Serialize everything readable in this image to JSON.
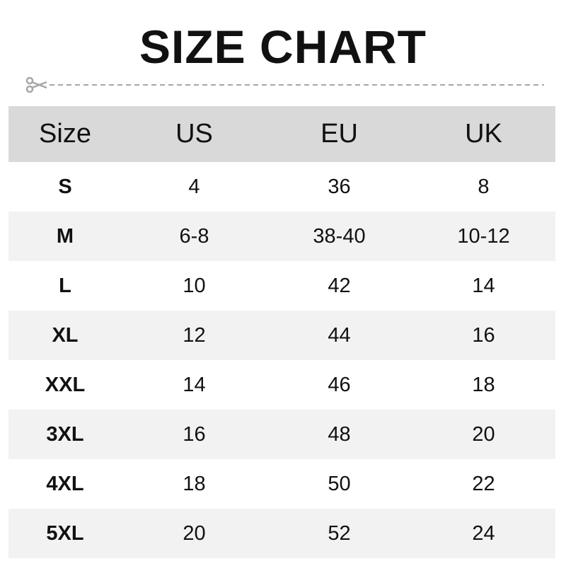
{
  "title": "SIZE CHART",
  "icons": {
    "cut_line": "scissors-icon"
  },
  "colors": {
    "header_bg": "#d9d9d9",
    "alt_row_bg": "#f2f2f2",
    "cut_line": "#a6a6a6"
  },
  "table": {
    "headers": [
      "Size",
      "US",
      "EU",
      "UK"
    ],
    "rows": [
      [
        "S",
        "4",
        "36",
        "8"
      ],
      [
        "M",
        "6-8",
        "38-40",
        "10-12"
      ],
      [
        "L",
        "10",
        "42",
        "14"
      ],
      [
        "XL",
        "12",
        "44",
        "16"
      ],
      [
        "XXL",
        "14",
        "46",
        "18"
      ],
      [
        "3XL",
        "16",
        "48",
        "20"
      ],
      [
        "4XL",
        "18",
        "50",
        "22"
      ],
      [
        "5XL",
        "20",
        "52",
        "24"
      ]
    ]
  }
}
